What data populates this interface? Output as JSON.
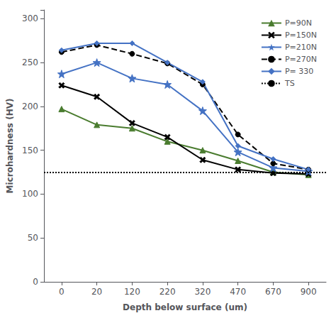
{
  "chart_data": {
    "type": "line",
    "categories": [
      "0",
      "20",
      "120",
      "220",
      "320",
      "470",
      "670",
      "900"
    ],
    "xlabel": "Depth below surface (um)",
    "ylabel": "Microhardness (HV)",
    "ylim": [
      0,
      310
    ],
    "yticks": [
      0,
      50,
      100,
      150,
      200,
      250,
      300
    ],
    "grid": false,
    "legend": "upper right",
    "series": [
      {
        "name": "P=90N",
        "color": "#4a7c2f",
        "line_style": "solid",
        "marker": "triangle",
        "values": [
          197,
          179,
          175,
          160,
          150,
          138,
          125,
          122
        ]
      },
      {
        "name": "P=150N",
        "color": "#000000",
        "line_style": "solid",
        "marker": "x",
        "values": [
          224,
          211,
          181,
          165,
          139,
          128,
          124,
          123
        ]
      },
      {
        "name": "P=210N",
        "color": "#4472c4",
        "line_style": "solid",
        "marker": "star",
        "values": [
          237,
          250,
          232,
          225,
          195,
          148,
          130,
          126
        ]
      },
      {
        "name": "P=270N",
        "color": "#000000",
        "line_style": "dashed",
        "marker": "circle",
        "values": [
          262,
          270,
          260,
          249,
          225,
          168,
          135,
          128
        ]
      },
      {
        "name": "P= 330",
        "color": "#4472c4",
        "line_style": "solid",
        "marker": "diamond",
        "values": [
          264,
          272,
          272,
          250,
          228,
          155,
          140,
          128
        ]
      },
      {
        "name": "TS",
        "type": "hline",
        "color": "#000000",
        "line_style": "dotted",
        "value": 125
      }
    ]
  }
}
